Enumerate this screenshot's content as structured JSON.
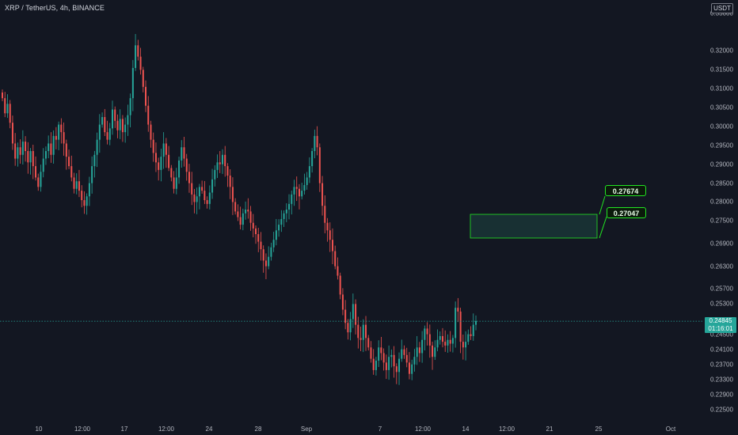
{
  "header": {
    "symbol_title": "XRP / TetherUS, 4h, BINANCE",
    "currency": "USDT"
  },
  "price_axis": {
    "ticks": [
      "0.33000",
      "0.32000",
      "0.31500",
      "0.31000",
      "0.30500",
      "0.30000",
      "0.29500",
      "0.29000",
      "0.28500",
      "0.28000",
      "0.27500",
      "0.26900",
      "0.26300",
      "0.25700",
      "0.25300",
      "0.24500",
      "0.24100",
      "0.23700",
      "0.23300",
      "0.22900",
      "0.22500"
    ],
    "last_price": "0.24845",
    "countdown": "01:16:01"
  },
  "time_axis": {
    "labels": [
      "10",
      "12:00",
      "17",
      "12:00",
      "24",
      "28",
      "Sep",
      "7",
      "12:00",
      "14",
      "12:00",
      "21",
      "25",
      "Oct"
    ]
  },
  "callouts": {
    "upper": "0.27674",
    "lower": "0.27047"
  },
  "colors": {
    "background": "#131722",
    "up": "#26a69a",
    "down": "#ef5350",
    "zone_border": "#22e522",
    "zone_fill": "#1b3a3a"
  },
  "chart_data": {
    "type": "candlestick",
    "symbol": "XRP / TetherUS",
    "interval": "4h",
    "exchange": "BINANCE",
    "ylim": [
      0.2225,
      0.3335
    ],
    "last_price": 0.24845,
    "range_box": {
      "low": 0.27047,
      "high": 0.27674
    },
    "closes": [
      0.3075,
      0.3035,
      0.306,
      0.301,
      0.2955,
      0.2915,
      0.2945,
      0.2925,
      0.296,
      0.2935,
      0.2905,
      0.2935,
      0.2895,
      0.2865,
      0.284,
      0.288,
      0.2915,
      0.2935,
      0.2955,
      0.2925,
      0.2975,
      0.2965,
      0.3005,
      0.2985,
      0.2955,
      0.292,
      0.2895,
      0.2865,
      0.2835,
      0.2855,
      0.283,
      0.2805,
      0.279,
      0.2815,
      0.285,
      0.2895,
      0.2925,
      0.2965,
      0.3005,
      0.3025,
      0.2985,
      0.2965,
      0.2995,
      0.3045,
      0.3015,
      0.299,
      0.302,
      0.2985,
      0.3005,
      0.303,
      0.3075,
      0.3155,
      0.3215,
      0.3185,
      0.315,
      0.3105,
      0.3055,
      0.3005,
      0.2965,
      0.293,
      0.2905,
      0.2885,
      0.292,
      0.2955,
      0.2925,
      0.289,
      0.2865,
      0.2835,
      0.2865,
      0.291,
      0.2945,
      0.2915,
      0.288,
      0.285,
      0.282,
      0.28,
      0.2815,
      0.284,
      0.283,
      0.2805,
      0.2795,
      0.2825,
      0.286,
      0.2885,
      0.2905,
      0.29,
      0.2925,
      0.2895,
      0.287,
      0.284,
      0.28,
      0.2775,
      0.276,
      0.274,
      0.277,
      0.278,
      0.2775,
      0.2745,
      0.273,
      0.2715,
      0.2695,
      0.2675,
      0.2645,
      0.263,
      0.2655,
      0.268,
      0.27,
      0.2725,
      0.274,
      0.2755,
      0.277,
      0.278,
      0.2795,
      0.282,
      0.284,
      0.2835,
      0.2815,
      0.283,
      0.2845,
      0.2865,
      0.2895,
      0.2935,
      0.2975,
      0.2945,
      0.285,
      0.279,
      0.2745,
      0.2725,
      0.27,
      0.267,
      0.263,
      0.2605,
      0.2555,
      0.2515,
      0.248,
      0.2455,
      0.249,
      0.253,
      0.2475,
      0.244,
      0.2435,
      0.2475,
      0.244,
      0.2415,
      0.2385,
      0.2355,
      0.238,
      0.2415,
      0.24,
      0.2375,
      0.2355,
      0.239,
      0.2395,
      0.2365,
      0.235,
      0.2385,
      0.241,
      0.2395,
      0.2375,
      0.2345,
      0.237,
      0.239,
      0.2415,
      0.24,
      0.2435,
      0.2465,
      0.245,
      0.242,
      0.239,
      0.2415,
      0.2435,
      0.2445,
      0.243,
      0.242,
      0.2435,
      0.2425,
      0.244,
      0.252,
      0.251,
      0.243,
      0.2415,
      0.243,
      0.245,
      0.2445,
      0.2475,
      0.2485
    ]
  }
}
